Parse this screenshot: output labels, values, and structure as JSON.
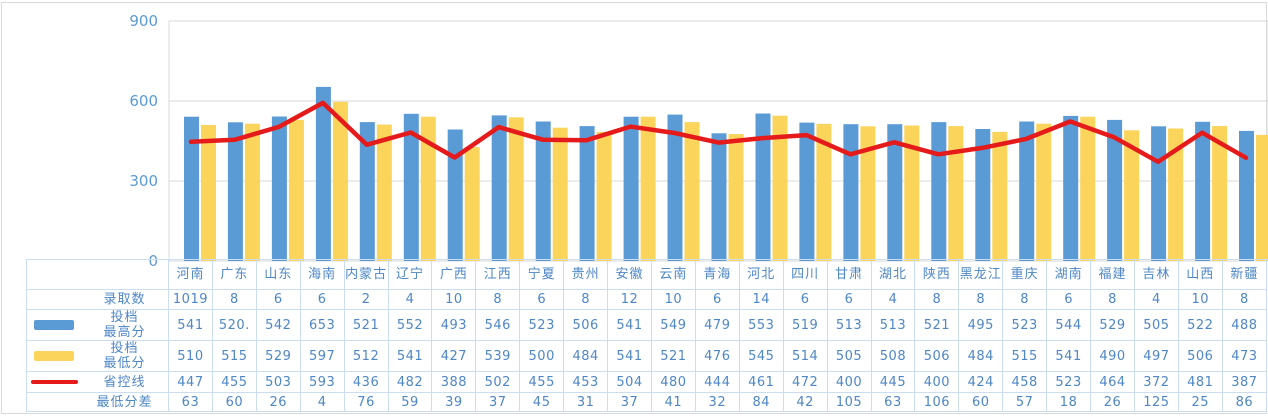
{
  "colors": {
    "bar_max": "#5B9BD5",
    "bar_min": "#FBD45C",
    "line": "#E51A1A",
    "table_text": "#4E87C6",
    "axis_text": "#5B9BD5",
    "table_border": "#CBDEEF",
    "gridline": "#D9D9D9",
    "frame": "#D9D9D9"
  },
  "chart_data": {
    "type": "bar",
    "title": "",
    "xlabel": "",
    "ylabel": "",
    "ylim": [
      0,
      900
    ],
    "yticks": [
      0,
      300,
      600,
      900
    ],
    "grid": true,
    "legend_position": "data-table-left",
    "categories": [
      "河南",
      "广东",
      "山东",
      "海南",
      "内蒙古",
      "辽宁",
      "广西",
      "江西",
      "宁夏",
      "贵州",
      "安徽",
      "云南",
      "青海",
      "河北",
      "四川",
      "甘肃",
      "湖北",
      "陕西",
      "黑龙江",
      "重庆",
      "湖南",
      "福建",
      "吉林",
      "山西",
      "新疆"
    ],
    "series": [
      {
        "name": "录取数",
        "label_lines": [
          "录取数"
        ],
        "plot": "none",
        "legend": null,
        "values": [
          1019,
          8,
          6,
          6,
          2,
          4,
          10,
          8,
          6,
          8,
          12,
          10,
          6,
          14,
          6,
          6,
          4,
          8,
          8,
          8,
          6,
          8,
          4,
          10,
          8
        ]
      },
      {
        "name": "投档最高分",
        "label_lines": [
          "投档",
          "最高分"
        ],
        "plot": "bar",
        "legend": "bar",
        "color": "#5B9BD5",
        "values": [
          541,
          "520.",
          542,
          653,
          521,
          552,
          493,
          546,
          523,
          506,
          541,
          549,
          479,
          553,
          519,
          513,
          513,
          521,
          495,
          523,
          544,
          529,
          505,
          522,
          488
        ]
      },
      {
        "name": "投档最低分",
        "label_lines": [
          "投档",
          "最低分"
        ],
        "plot": "bar",
        "legend": "bar",
        "color": "#FBD45C",
        "values": [
          510,
          515,
          529,
          597,
          512,
          541,
          427,
          539,
          500,
          484,
          541,
          521,
          476,
          545,
          514,
          505,
          508,
          506,
          484,
          515,
          541,
          490,
          497,
          506,
          473
        ]
      },
      {
        "name": "省控线",
        "label_lines": [
          "省控线"
        ],
        "plot": "line",
        "legend": "line",
        "color": "#E51A1A",
        "values": [
          447,
          455,
          503,
          593,
          436,
          482,
          388,
          502,
          455,
          453,
          504,
          480,
          444,
          461,
          472,
          400,
          445,
          400,
          424,
          458,
          523,
          464,
          372,
          481,
          387
        ]
      },
      {
        "name": "最低分差",
        "label_lines": [
          "最低分差"
        ],
        "plot": "none",
        "legend": null,
        "values": [
          63,
          60,
          26,
          4,
          76,
          59,
          39,
          37,
          45,
          31,
          37,
          41,
          32,
          84,
          42,
          105,
          63,
          106,
          60,
          57,
          18,
          26,
          125,
          25,
          86
        ]
      }
    ]
  }
}
